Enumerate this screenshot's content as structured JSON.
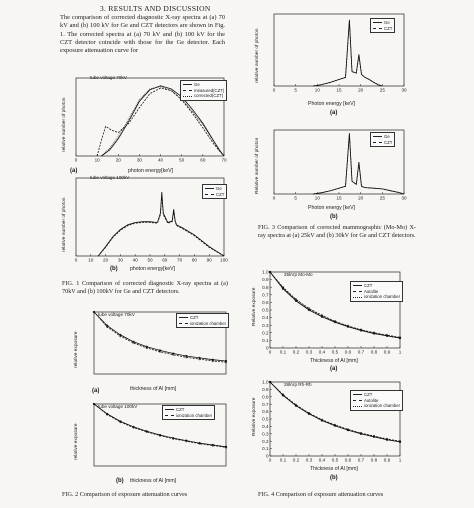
{
  "section": {
    "heading": "3.  RESULTS AND DISCUSSION",
    "paragraph": "The comparison of corrected diagnostic X-ray spectra at (a) 70 kV and (b) 100 kV for Ge and CZT detectors are shown in Fig. 1. The corrected spectra at (a) 70 kV and (b) 100 kV for the CZT detector coincide with those for the Ge detector. Each exposure attenuation curve for"
  },
  "captions": {
    "fig1": "FIG. 1 Comparison of corrected diagnostic X-ray spectra at (a) 70kV and (b) 100kV for Ge and CZT detectors.",
    "fig2": "FIG. 2 Comparison of exposure attenuation curves",
    "fig3": "FIG. 3 Comparison of corrected mammographic (Mo-Mo) X-ray spectra at (a) 25kV and (b) 30kV for Ge and CZT detectors.",
    "fig4": "FIG. 4 Comparison of exposure attenuation curves"
  },
  "plots": {
    "fig1a": {
      "sublabel": "(a)",
      "annotation": "tube voltage 70kV",
      "xlabel": "photon energy[keV]",
      "ylabel": "relative number of photon",
      "legend": [
        "Ge",
        "measured(CZT)",
        "corrected(CZT)"
      ]
    },
    "fig1b": {
      "sublabel": "(b)",
      "annotation": "tube voltage 100kV",
      "xlabel": "photon energy[keV]",
      "ylabel": "relative number of photon",
      "legend": [
        "Ge",
        "CZT"
      ]
    },
    "fig2a": {
      "sublabel": "(a)",
      "annotation": "tube voltage 70kV",
      "xlabel": "thickness of Al [mm]",
      "ylabel": "relative exposure",
      "legend": [
        "CZT",
        "ionization chamber"
      ]
    },
    "fig2b": {
      "sublabel": "(b)",
      "annotation": "tube voltage 100kV",
      "xlabel": "thickness of Al [mm]",
      "ylabel": "relative exposure",
      "legend": [
        "CZT",
        "ionization chamber"
      ]
    },
    "fig3a": {
      "sublabel": "(a)",
      "xlabel": "Photon energy [keV]",
      "ylabel": "relative number of photon",
      "legend": [
        "Ge",
        "CZT"
      ]
    },
    "fig3b": {
      "sublabel": "(b)",
      "xlabel": "Photon energy [keV]",
      "ylabel": "Relative number of photon",
      "legend": [
        "Ge",
        "CZT"
      ]
    },
    "fig4a": {
      "sublabel": "(a)",
      "annotation": "25kVp Mo-Mo",
      "xlabel": "Thickness of Al [mm]",
      "ylabel": "Relative exposure",
      "legend": [
        "CZT",
        "Autolite",
        "ionization chamber"
      ]
    },
    "fig4b": {
      "sublabel": "(b)",
      "annotation": "28kVp Rh-Rh",
      "xlabel": "Thickness of Al [mm]",
      "ylabel": "Relative exposure",
      "legend": [
        "CZT",
        "Autolite",
        "ionization chamber"
      ]
    }
  },
  "chart_data": [
    {
      "id": "fig1a",
      "type": "line",
      "xlim": [
        0,
        70
      ],
      "ylim": [
        0,
        1
      ],
      "xticks": [
        "0",
        "10",
        "20",
        "30",
        "40",
        "50",
        "60",
        "70"
      ],
      "series": [
        {
          "name": "Ge",
          "x": [
            12,
            16,
            20,
            25,
            30,
            35,
            40,
            45,
            50,
            55,
            60,
            65,
            68,
            70
          ],
          "y": [
            0.0,
            0.08,
            0.22,
            0.45,
            0.7,
            0.85,
            0.9,
            0.86,
            0.76,
            0.6,
            0.42,
            0.2,
            0.07,
            0.0
          ]
        },
        {
          "name": "measured(CZT)",
          "x": [
            10,
            12,
            14,
            17,
            20,
            25,
            30,
            35,
            40,
            45,
            50,
            55,
            60,
            65,
            68,
            70
          ],
          "y": [
            0.0,
            0.2,
            0.38,
            0.33,
            0.3,
            0.42,
            0.62,
            0.8,
            0.87,
            0.84,
            0.72,
            0.55,
            0.36,
            0.16,
            0.06,
            0.0
          ]
        },
        {
          "name": "corrected(CZT)",
          "x": [
            12,
            16,
            20,
            25,
            30,
            35,
            40,
            45,
            50,
            55,
            60,
            65,
            68,
            70
          ],
          "y": [
            0.0,
            0.1,
            0.25,
            0.48,
            0.72,
            0.86,
            0.89,
            0.84,
            0.73,
            0.57,
            0.4,
            0.19,
            0.06,
            0.0
          ]
        }
      ]
    },
    {
      "id": "fig1b",
      "type": "line",
      "xlim": [
        0,
        100
      ],
      "ylim": [
        0,
        1
      ],
      "xticks": [
        "0",
        "10",
        "20",
        "30",
        "40",
        "50",
        "60",
        "70",
        "80",
        "90",
        "100"
      ],
      "series": [
        {
          "name": "Ge",
          "x": [
            15,
            20,
            25,
            30,
            35,
            40,
            45,
            50,
            55,
            57,
            58,
            59,
            62,
            65,
            66,
            67,
            68,
            72,
            80,
            90,
            100
          ],
          "y": [
            0.0,
            0.12,
            0.25,
            0.34,
            0.4,
            0.43,
            0.44,
            0.44,
            0.43,
            0.55,
            0.82,
            0.55,
            0.43,
            0.45,
            0.6,
            0.45,
            0.4,
            0.36,
            0.27,
            0.12,
            0.0
          ]
        },
        {
          "name": "CZT",
          "x": [
            15,
            20,
            25,
            30,
            35,
            40,
            45,
            50,
            55,
            57,
            58,
            59,
            62,
            65,
            66,
            67,
            68,
            72,
            80,
            90,
            100
          ],
          "y": [
            0.0,
            0.11,
            0.24,
            0.33,
            0.39,
            0.42,
            0.43,
            0.43,
            0.42,
            0.53,
            0.78,
            0.53,
            0.42,
            0.44,
            0.57,
            0.44,
            0.39,
            0.35,
            0.26,
            0.11,
            0.0
          ]
        }
      ]
    },
    {
      "id": "fig2a",
      "type": "line",
      "xlim": [
        0,
        10
      ],
      "ylim": [
        0,
        1
      ],
      "xticks": [],
      "series": [
        {
          "name": "CZT",
          "x": [
            0,
            1,
            2,
            3,
            4,
            5,
            6,
            7,
            8,
            9,
            10
          ],
          "y": [
            1.0,
            0.78,
            0.63,
            0.52,
            0.44,
            0.38,
            0.33,
            0.29,
            0.26,
            0.23,
            0.21
          ]
        },
        {
          "name": "ionization chamber",
          "x": [
            0,
            1,
            2,
            3,
            4,
            5,
            6,
            7,
            8,
            9,
            10
          ],
          "y": [
            1.0,
            0.76,
            0.61,
            0.5,
            0.42,
            0.36,
            0.31,
            0.27,
            0.24,
            0.21,
            0.19
          ]
        }
      ]
    },
    {
      "id": "fig2b",
      "type": "line",
      "xlim": [
        0,
        10
      ],
      "ylim": [
        0,
        1
      ],
      "xticks": [],
      "series": [
        {
          "name": "CZT",
          "x": [
            0,
            1,
            2,
            3,
            4,
            5,
            6,
            7,
            8,
            9,
            10
          ],
          "y": [
            1.0,
            0.84,
            0.72,
            0.63,
            0.56,
            0.5,
            0.45,
            0.41,
            0.37,
            0.34,
            0.31
          ]
        },
        {
          "name": "ionization chamber",
          "x": [
            0,
            1,
            2,
            3,
            4,
            5,
            6,
            7,
            8,
            9,
            10
          ],
          "y": [
            1.0,
            0.83,
            0.71,
            0.62,
            0.55,
            0.49,
            0.44,
            0.4,
            0.36,
            0.33,
            0.3
          ]
        }
      ]
    },
    {
      "id": "fig3a",
      "type": "line",
      "xlim": [
        0,
        30
      ],
      "ylim": [
        0,
        1
      ],
      "xticks": [
        "0",
        "5",
        "10",
        "15",
        "20",
        "25",
        "30"
      ],
      "series": [
        {
          "name": "Ge",
          "x": [
            9,
            11,
            13,
            15,
            16.5,
            17.4,
            18,
            19,
            19.6,
            20.2,
            21,
            22,
            23,
            24,
            25
          ],
          "y": [
            0.0,
            0.02,
            0.05,
            0.09,
            0.12,
            0.92,
            0.2,
            0.18,
            0.44,
            0.16,
            0.12,
            0.09,
            0.05,
            0.02,
            0.0
          ]
        },
        {
          "name": "CZT",
          "x": [
            9,
            11,
            13,
            15,
            16.5,
            17.4,
            18,
            19,
            19.6,
            20.2,
            21,
            22,
            23,
            24,
            25
          ],
          "y": [
            0.0,
            0.02,
            0.05,
            0.09,
            0.12,
            0.9,
            0.2,
            0.18,
            0.42,
            0.16,
            0.12,
            0.09,
            0.05,
            0.02,
            0.0
          ]
        }
      ]
    },
    {
      "id": "fig3b",
      "type": "line",
      "xlim": [
        0,
        30
      ],
      "ylim": [
        0,
        1
      ],
      "xticks": [
        "0",
        "5",
        "10",
        "15",
        "20",
        "25",
        "30"
      ],
      "series": [
        {
          "name": "Ge",
          "x": [
            9,
            11,
            13,
            15,
            16.5,
            17.4,
            18,
            19,
            19.6,
            20.2,
            21,
            23,
            25,
            27,
            29,
            30
          ],
          "y": [
            0.0,
            0.02,
            0.05,
            0.09,
            0.12,
            0.95,
            0.2,
            0.15,
            0.5,
            0.12,
            0.1,
            0.09,
            0.08,
            0.05,
            0.02,
            0.0
          ]
        },
        {
          "name": "CZT",
          "x": [
            9,
            11,
            13,
            15,
            16.5,
            17.4,
            18,
            19,
            19.6,
            20.2,
            21,
            23,
            25,
            27,
            29,
            30
          ],
          "y": [
            0.0,
            0.02,
            0.05,
            0.09,
            0.12,
            0.93,
            0.2,
            0.15,
            0.48,
            0.12,
            0.1,
            0.09,
            0.08,
            0.05,
            0.02,
            0.0
          ]
        }
      ]
    },
    {
      "id": "fig4a",
      "type": "line",
      "xlim": [
        0,
        1
      ],
      "ylim": [
        0,
        1.0
      ],
      "xticks": [
        "0",
        "0.1",
        "0.2",
        "0.3",
        "0.4",
        "0.5",
        "0.6",
        "0.7",
        "0.8",
        "0.9",
        "1"
      ],
      "yticks": [
        "0",
        "0.1",
        "0.2",
        "0.3",
        "0.4",
        "0.5",
        "0.6",
        "0.7",
        "0.8",
        "0.9",
        "1.0"
      ],
      "series": [
        {
          "name": "CZT",
          "x": [
            0,
            0.1,
            0.2,
            0.3,
            0.4,
            0.5,
            0.6,
            0.7,
            0.8,
            0.9,
            1
          ],
          "y": [
            1.0,
            0.78,
            0.62,
            0.5,
            0.41,
            0.34,
            0.28,
            0.23,
            0.19,
            0.16,
            0.13
          ]
        },
        {
          "name": "Autolite",
          "x": [
            0,
            0.1,
            0.2,
            0.3,
            0.4,
            0.5,
            0.6,
            0.7,
            0.8,
            0.9,
            1
          ],
          "y": [
            1.0,
            0.8,
            0.64,
            0.52,
            0.43,
            0.35,
            0.29,
            0.24,
            0.2,
            0.17,
            0.14
          ]
        },
        {
          "name": "ionization chamber",
          "x": [
            0,
            0.1,
            0.2,
            0.3,
            0.4,
            0.5,
            0.6,
            0.7,
            0.8,
            0.9,
            1
          ],
          "y": [
            1.0,
            0.79,
            0.63,
            0.51,
            0.42,
            0.35,
            0.29,
            0.24,
            0.2,
            0.16,
            0.13
          ]
        }
      ]
    },
    {
      "id": "fig4b",
      "type": "line",
      "xlim": [
        0,
        1
      ],
      "ylim": [
        0,
        1.0
      ],
      "xticks": [
        "0",
        "0.1",
        "0.2",
        "0.3",
        "0.4",
        "0.5",
        "0.6",
        "0.7",
        "0.8",
        "0.9",
        "1"
      ],
      "yticks": [
        "0",
        "0.1",
        "0.2",
        "0.3",
        "0.4",
        "0.5",
        "0.6",
        "0.7",
        "0.8",
        "0.9",
        "1.0"
      ],
      "series": [
        {
          "name": "CZT",
          "x": [
            0,
            0.1,
            0.2,
            0.3,
            0.4,
            0.5,
            0.6,
            0.7,
            0.8,
            0.9,
            1
          ],
          "y": [
            1.0,
            0.82,
            0.68,
            0.57,
            0.48,
            0.41,
            0.35,
            0.3,
            0.26,
            0.22,
            0.19
          ]
        },
        {
          "name": "Autolite",
          "x": [
            0,
            0.1,
            0.2,
            0.3,
            0.4,
            0.5,
            0.6,
            0.7,
            0.8,
            0.9,
            1
          ],
          "y": [
            1.0,
            0.83,
            0.69,
            0.58,
            0.49,
            0.42,
            0.36,
            0.31,
            0.27,
            0.23,
            0.2
          ]
        },
        {
          "name": "ionization chamber",
          "x": [
            0,
            0.1,
            0.2,
            0.3,
            0.4,
            0.5,
            0.6,
            0.7,
            0.8,
            0.9,
            1
          ],
          "y": [
            1.0,
            0.82,
            0.68,
            0.57,
            0.48,
            0.41,
            0.35,
            0.3,
            0.26,
            0.22,
            0.19
          ]
        }
      ]
    }
  ]
}
